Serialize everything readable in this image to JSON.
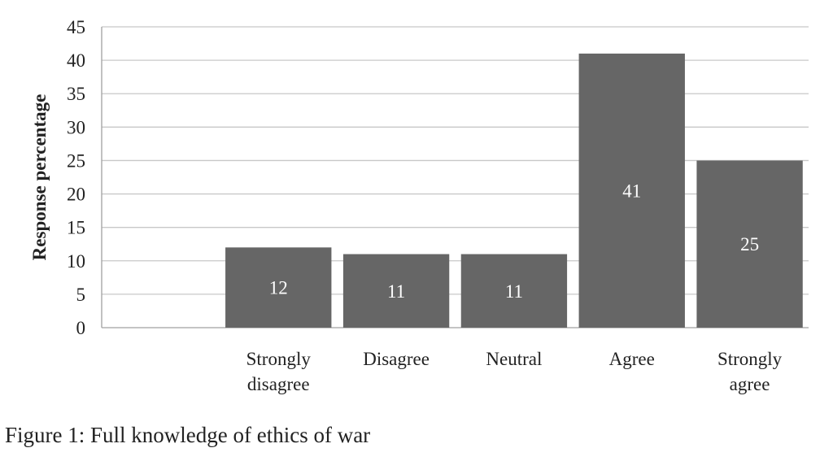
{
  "caption": "Figure 1: Full knowledge of ethics of war",
  "chart_data": {
    "type": "bar",
    "title": "",
    "xlabel": "",
    "ylabel": "Response percentage",
    "categories": [
      [
        "Strongly",
        "disagree"
      ],
      [
        "Disagree"
      ],
      [
        "Neutral"
      ],
      [
        "Agree"
      ],
      [
        "Strongly",
        "agree"
      ]
    ],
    "values": [
      12,
      11,
      11,
      41,
      25
    ],
    "data_labels": [
      "12",
      "11",
      "11",
      "41",
      "25"
    ],
    "ylim": [
      0,
      45
    ],
    "yticks": [
      0,
      5,
      10,
      15,
      20,
      25,
      30,
      35,
      40,
      45
    ],
    "grid": true,
    "legend": "none",
    "colors": {
      "bar": "#666666",
      "bar_label": "#ffffff",
      "grid": "#c8c8c8",
      "axis_text": "#222222"
    }
  }
}
